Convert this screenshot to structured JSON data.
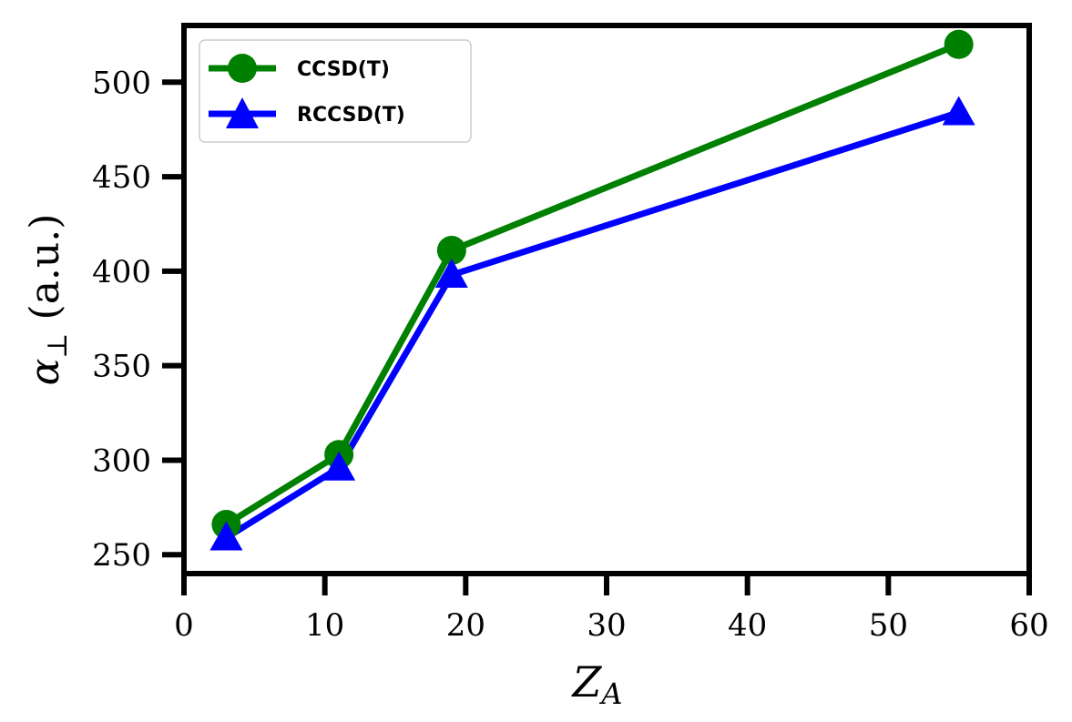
{
  "chart_data": {
    "type": "line",
    "x": [
      3,
      11,
      19,
      55
    ],
    "series": [
      {
        "name": "CCSD(T)",
        "color": "#008000",
        "marker": "circle",
        "values": [
          266,
          303,
          411,
          520
        ]
      },
      {
        "name": "RCCSD(T)",
        "color": "#0000ff",
        "marker": "triangle",
        "values": [
          259,
          296,
          398,
          484
        ]
      }
    ],
    "xlim": [
      0,
      60
    ],
    "ylim": [
      240,
      530
    ],
    "xticks": [
      0,
      10,
      20,
      30,
      40,
      50,
      60
    ],
    "yticks": [
      250,
      300,
      350,
      400,
      450,
      500
    ],
    "xtick_labels": [
      "0",
      "10",
      "20",
      "30",
      "40",
      "50",
      "60"
    ],
    "ytick_labels": [
      "250",
      "300",
      "350",
      "400",
      "450",
      "500"
    ],
    "xlabel": {
      "main": "Z",
      "sub": "A"
    },
    "ylabel": {
      "main": "α",
      "sub": "⊥",
      "unit": "(a.u.)"
    },
    "legend": {
      "position": "top-left"
    },
    "grid": false
  }
}
